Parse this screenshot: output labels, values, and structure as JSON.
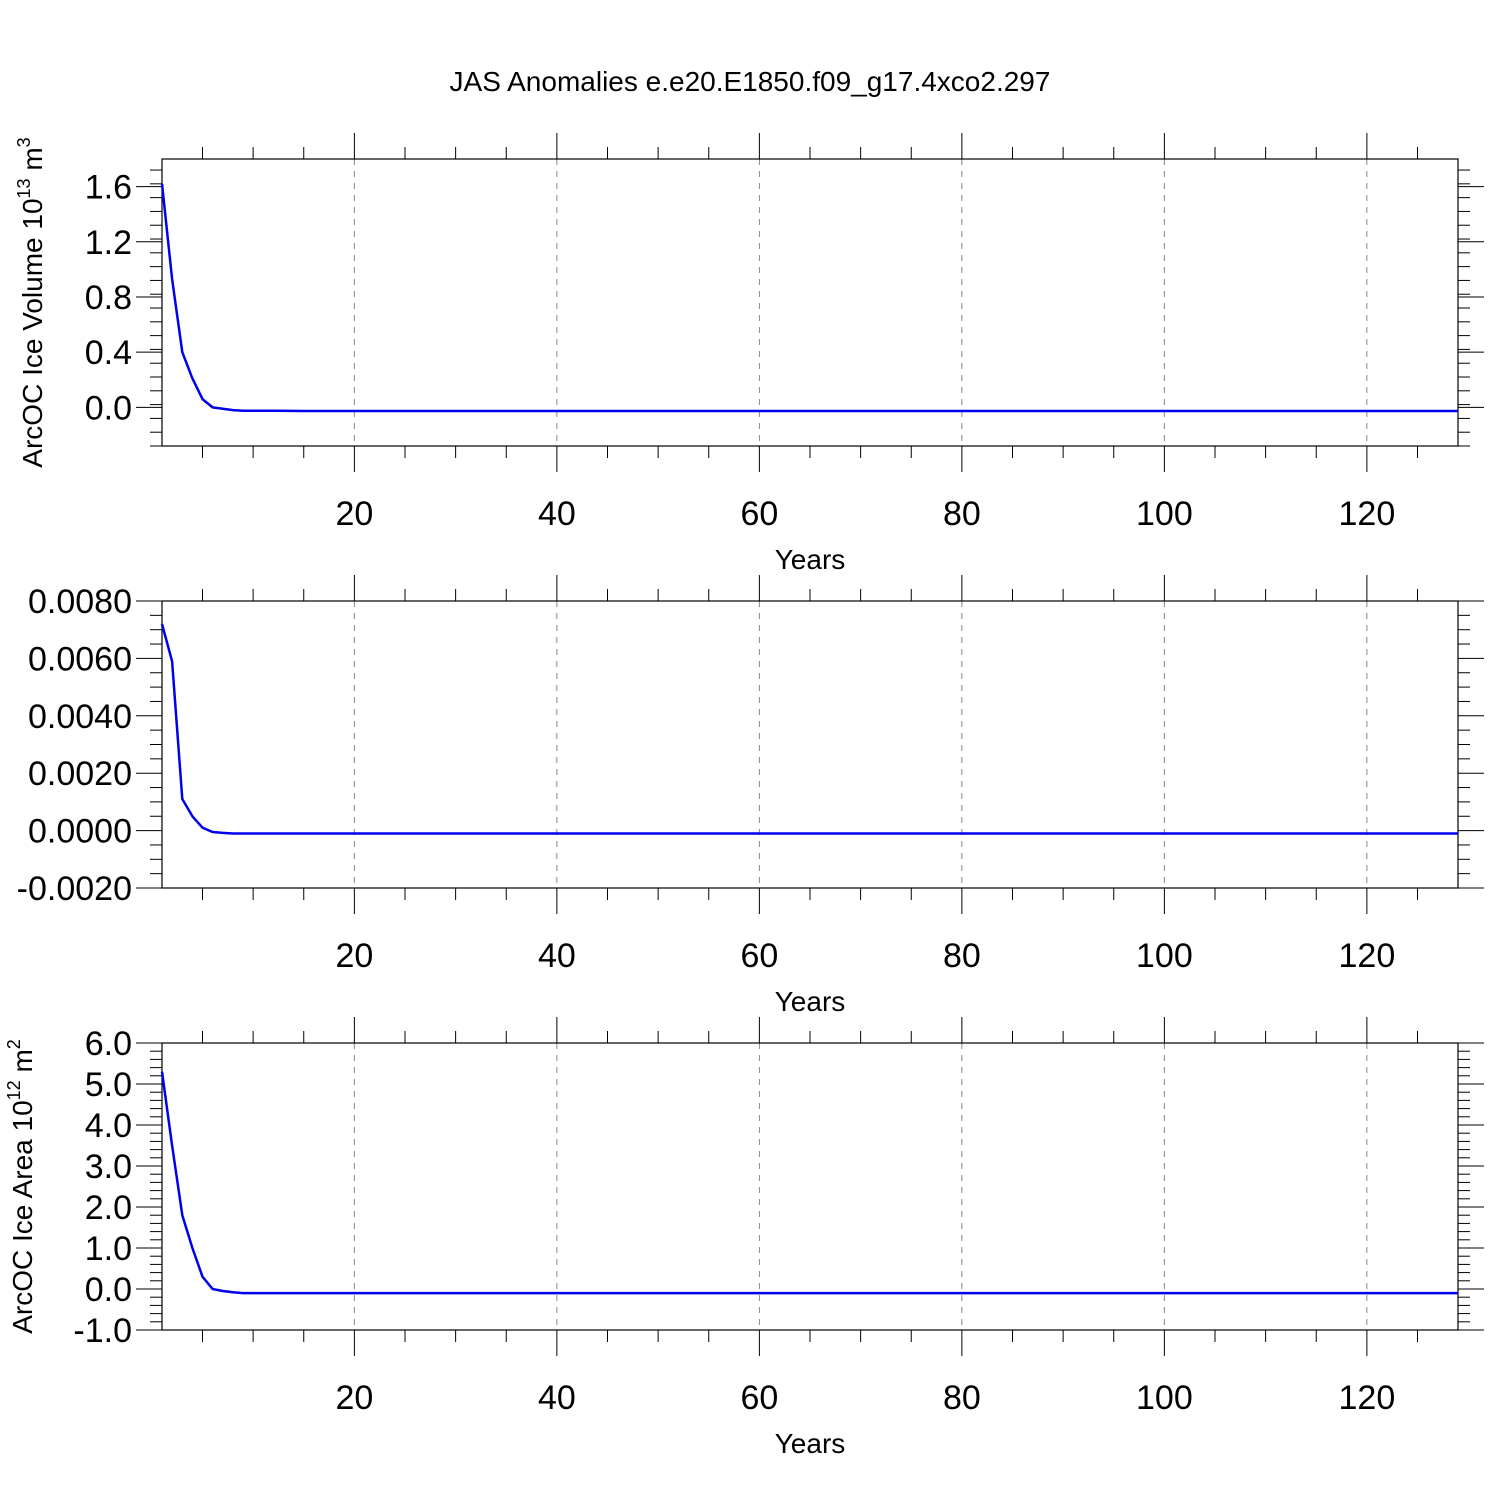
{
  "page_title": "JAS Anomalies e.e20.E1850.f09_g17.4xco2.297",
  "chart_data": [
    {
      "type": "line",
      "title": "JAS Anomalies e.e20.E1850.f09_g17.4xco2.297",
      "xlabel": "Years",
      "ylabel": "ArcOC Ice Volume 10",
      "ylabel_sup": "13",
      "ylabel_unit": "m",
      "ylabel_unit_sup": "3",
      "xlim": [
        1,
        129
      ],
      "ylim": [
        -0.28,
        1.8
      ],
      "xticks": [
        20,
        40,
        60,
        80,
        100,
        120
      ],
      "yticks": [
        0.0,
        0.4,
        0.8,
        1.2,
        1.6
      ],
      "ytick_labels": [
        "0.0",
        "0.4",
        "0.8",
        "1.2",
        "1.6"
      ],
      "x_minor_step": 5,
      "y_minor_step": 0.1,
      "grid": "x-dashed",
      "color": "#0000ee",
      "series": [
        {
          "x": [
            1,
            2,
            3,
            4,
            5,
            6,
            7,
            8,
            9,
            10,
            12,
            15,
            20,
            30,
            50,
            80,
            100,
            129
          ],
          "values": [
            1.62,
            0.93,
            0.4,
            0.21,
            0.06,
            0.0,
            -0.01,
            -0.02,
            -0.025,
            -0.025,
            -0.025,
            -0.026,
            -0.026,
            -0.026,
            -0.026,
            -0.026,
            -0.026,
            -0.026
          ]
        }
      ]
    },
    {
      "type": "line",
      "xlabel": "Years",
      "xlim": [
        1,
        129
      ],
      "ylim": [
        -0.002,
        0.008
      ],
      "xticks": [
        20,
        40,
        60,
        80,
        100,
        120
      ],
      "yticks": [
        -0.002,
        0.0,
        0.002,
        0.004,
        0.006,
        0.008
      ],
      "ytick_labels": [
        "-0.0020",
        "0.0000",
        "0.0020",
        "0.0040",
        "0.0060",
        "0.0080"
      ],
      "x_minor_step": 5,
      "y_minor_step": 0.0005,
      "grid": "x-dashed",
      "color": "#0000ee",
      "series": [
        {
          "x": [
            1,
            2,
            3,
            4,
            5,
            6,
            7,
            8,
            10,
            15,
            20,
            50,
            100,
            129
          ],
          "values": [
            0.0072,
            0.0059,
            0.0011,
            0.0005,
            0.0001,
            -5e-05,
            -8e-05,
            -0.0001,
            -0.0001,
            -0.0001,
            -0.0001,
            -0.0001,
            -0.0001,
            -0.0001
          ]
        }
      ]
    },
    {
      "type": "line",
      "xlabel": "Years",
      "ylabel": "ArcOC Ice Area 10",
      "ylabel_sup": "12",
      "ylabel_unit": "m",
      "ylabel_unit_sup": "2",
      "xlim": [
        1,
        129
      ],
      "ylim": [
        -1.0,
        6.0
      ],
      "xticks": [
        20,
        40,
        60,
        80,
        100,
        120
      ],
      "yticks": [
        -1.0,
        0.0,
        1.0,
        2.0,
        3.0,
        4.0,
        5.0,
        6.0
      ],
      "ytick_labels": [
        "-1.0",
        "0.0",
        "1.0",
        "2.0",
        "3.0",
        "4.0",
        "5.0",
        "6.0"
      ],
      "x_minor_step": 5,
      "y_minor_step": 0.2,
      "grid": "x-dashed",
      "color": "#0000ee",
      "series": [
        {
          "x": [
            1,
            2,
            3,
            4,
            5,
            6,
            7,
            8,
            9,
            10,
            12,
            15,
            20,
            50,
            100,
            129
          ],
          "values": [
            5.3,
            3.5,
            1.8,
            1.0,
            0.3,
            0.0,
            -0.05,
            -0.08,
            -0.1,
            -0.1,
            -0.1,
            -0.1,
            -0.1,
            -0.1,
            -0.1,
            -0.1
          ]
        }
      ]
    }
  ]
}
